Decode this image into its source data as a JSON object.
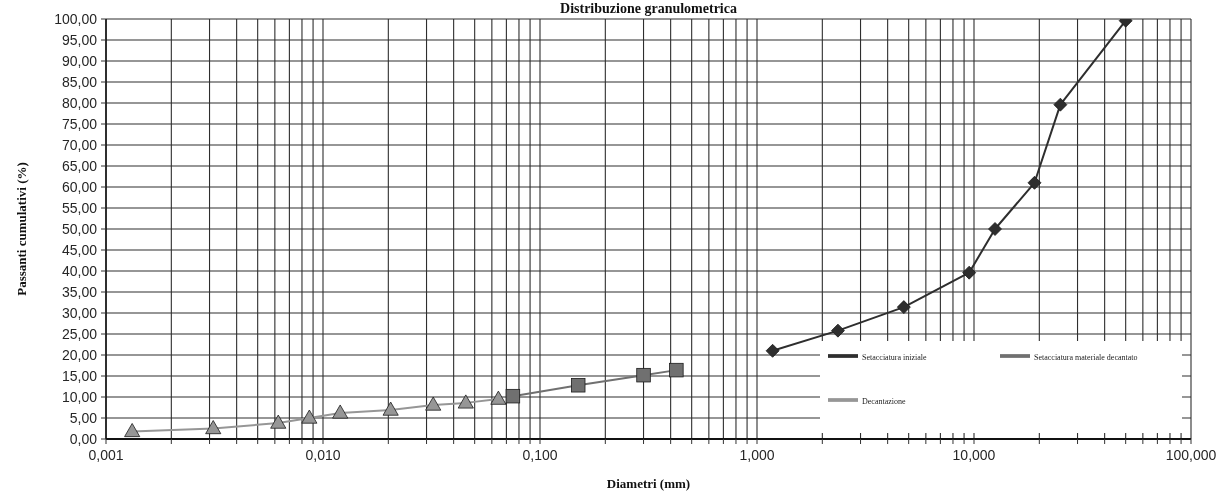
{
  "chart_data": {
    "type": "line",
    "title": "Distribuzione granulometrica",
    "xlabel": "Diametri (mm)",
    "ylabel": "Passanti cumulativi (%)",
    "log": "x",
    "grid": true,
    "legend": "bottom right",
    "xlim": [
      0.001,
      100
    ],
    "xticks": [
      {
        "value": 0.001,
        "label": "0,001"
      },
      {
        "value": 0.002,
        "label": null
      },
      {
        "value": 0.003,
        "label": null
      },
      {
        "value": 0.004,
        "label": null
      },
      {
        "value": 0.005,
        "label": null
      },
      {
        "value": 0.006,
        "label": null
      },
      {
        "value": 0.007,
        "label": null
      },
      {
        "value": 0.008,
        "label": null
      },
      {
        "value": 0.009,
        "label": null
      },
      {
        "value": 0.01,
        "label": "0,010"
      },
      {
        "value": 0.02,
        "label": null
      },
      {
        "value": 0.03,
        "label": null
      },
      {
        "value": 0.04,
        "label": null
      },
      {
        "value": 0.05,
        "label": null
      },
      {
        "value": 0.06,
        "label": null
      },
      {
        "value": 0.07,
        "label": null
      },
      {
        "value": 0.08,
        "label": null
      },
      {
        "value": 0.09,
        "label": null
      },
      {
        "value": 0.1,
        "label": "0,100"
      },
      {
        "value": 0.2,
        "label": null
      },
      {
        "value": 0.3,
        "label": null
      },
      {
        "value": 0.4,
        "label": null
      },
      {
        "value": 0.5,
        "label": null
      },
      {
        "value": 0.6,
        "label": null
      },
      {
        "value": 0.7,
        "label": null
      },
      {
        "value": 0.8,
        "label": null
      },
      {
        "value": 0.9,
        "label": null
      },
      {
        "value": 1,
        "label": "1,000"
      },
      {
        "value": 2,
        "label": null
      },
      {
        "value": 3,
        "label": null
      },
      {
        "value": 4,
        "label": null
      },
      {
        "value": 5,
        "label": null
      },
      {
        "value": 6,
        "label": null
      },
      {
        "value": 7,
        "label": null
      },
      {
        "value": 8,
        "label": null
      },
      {
        "value": 9,
        "label": null
      },
      {
        "value": 10,
        "label": "10,000"
      },
      {
        "value": 20,
        "label": null
      },
      {
        "value": 30,
        "label": null
      },
      {
        "value": 40,
        "label": null
      },
      {
        "value": 50,
        "label": null
      },
      {
        "value": 60,
        "label": null
      },
      {
        "value": 70,
        "label": null
      },
      {
        "value": 80,
        "label": null
      },
      {
        "value": 90,
        "label": null
      },
      {
        "value": 100,
        "label": "100,000"
      }
    ],
    "ylim": [
      0,
      100
    ],
    "yticks": [
      {
        "value": 0,
        "label": "0,00"
      },
      {
        "value": 5,
        "label": "5,00"
      },
      {
        "value": 10,
        "label": "10,00"
      },
      {
        "value": 15,
        "label": "15,00"
      },
      {
        "value": 20,
        "label": "20,00"
      },
      {
        "value": 25,
        "label": "25,00"
      },
      {
        "value": 30,
        "label": "30,00"
      },
      {
        "value": 35,
        "label": "35,00"
      },
      {
        "value": 40,
        "label": "40,00"
      },
      {
        "value": 45,
        "label": "45,00"
      },
      {
        "value": 50,
        "label": "50,00"
      },
      {
        "value": 55,
        "label": "55,00"
      },
      {
        "value": 60,
        "label": "60,00"
      },
      {
        "value": 65,
        "label": "65,00"
      },
      {
        "value": 70,
        "label": "70,00"
      },
      {
        "value": 75,
        "label": "75,00"
      },
      {
        "value": 80,
        "label": "80,00"
      },
      {
        "value": 85,
        "label": "85,00"
      },
      {
        "value": 90,
        "label": "90,00"
      },
      {
        "value": 95,
        "label": "95,00"
      },
      {
        "value": 100,
        "label": "100,00"
      }
    ],
    "series": [
      {
        "name": "Setacciatura iniziale",
        "marker": "diamond",
        "color": "#2e2e2e",
        "x": [
          1.18,
          2.36,
          4.75,
          9.5,
          12.5,
          19,
          25,
          50
        ],
        "values": [
          21.0,
          25.8,
          31.4,
          39.6,
          50.0,
          61.0,
          79.6,
          99.6
        ]
      },
      {
        "name": "Setacciatura materiale decantato",
        "marker": "square",
        "color": "#707070",
        "x": [
          0.075,
          0.15,
          0.3,
          0.425
        ],
        "values": [
          10.2,
          12.8,
          15.2,
          16.4
        ]
      },
      {
        "name": "Decantazione",
        "marker": "triangle",
        "color": "#969696",
        "x": [
          0.00132,
          0.00312,
          0.00622,
          0.00865,
          0.012,
          0.0205,
          0.0322,
          0.0455,
          0.0643
        ],
        "values": [
          1.8,
          2.5,
          3.8,
          5.0,
          6.2,
          6.9,
          8.1,
          8.6,
          9.5
        ]
      }
    ]
  }
}
